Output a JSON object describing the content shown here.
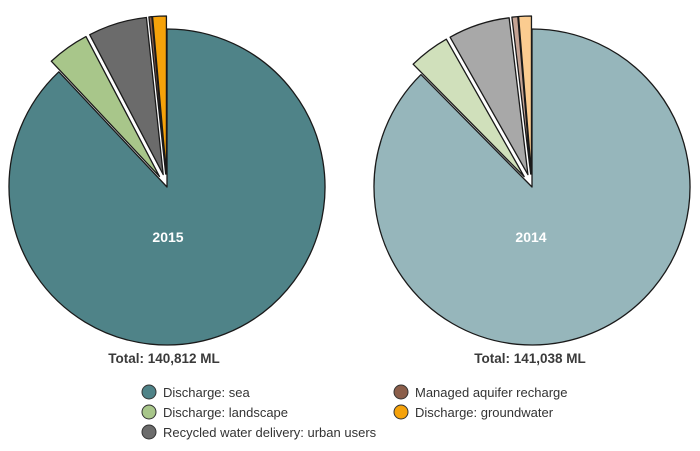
{
  "chart_data": [
    {
      "type": "pie",
      "title": "2015",
      "total_label": "Total: 140,812 ML",
      "slices": [
        {
          "name": "Discharge: sea",
          "value": 88.0
        },
        {
          "name": "Discharge: landscape",
          "value": 4.3
        },
        {
          "name": "Recycled water delivery: urban users",
          "value": 6.0
        },
        {
          "name": "Managed aquifer recharge",
          "value": 0.3
        },
        {
          "name": "Discharge: groundwater",
          "value": 1.4
        }
      ],
      "exploded": true
    },
    {
      "type": "pie",
      "title": "2014",
      "total_label": "Total: 141,038 ML",
      "slices": [
        {
          "name": "Discharge: sea",
          "value": 87.6
        },
        {
          "name": "Discharge: landscape",
          "value": 4.2
        },
        {
          "name": "Recycled water delivery: urban users",
          "value": 6.3
        },
        {
          "name": "Managed aquifer recharge",
          "value": 0.6
        },
        {
          "name": "Discharge: groundwater",
          "value": 1.3
        }
      ],
      "exploded": true
    }
  ],
  "colors": {
    "2015": [
      "#4f8388",
      "#a8c68a",
      "#6b6b6b",
      "#8b5e4a",
      "#f5a20a"
    ],
    "2014": [
      "#96b6bb",
      "#d0e0bb",
      "#a8a8a8",
      "#c4a394",
      "#fbcc90"
    ],
    "legend": [
      "#4f8388",
      "#a8c68a",
      "#6b6b6b",
      "#8b5e4a",
      "#f5a20a"
    ]
  },
  "legend": [
    "Discharge: sea",
    "Discharge: landscape",
    "Recycled water delivery: urban users",
    "Managed aquifer recharge",
    "Discharge: groundwater"
  ]
}
